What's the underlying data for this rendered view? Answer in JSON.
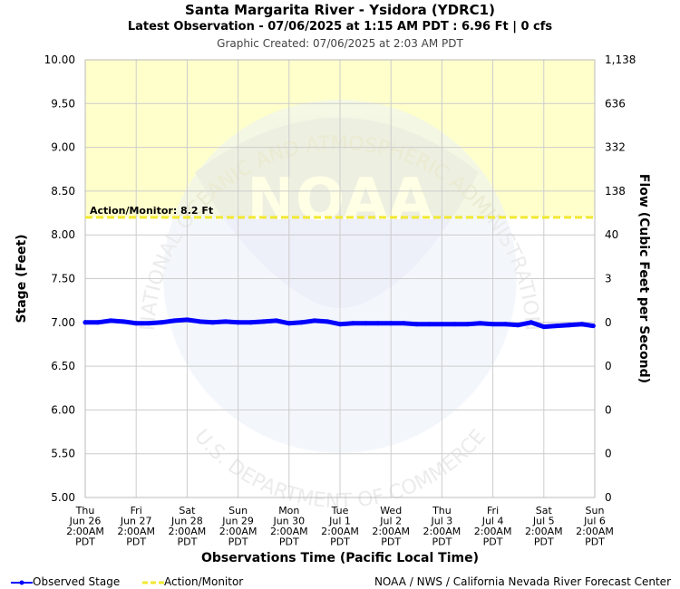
{
  "header": {
    "title": "Santa Margarita River - Ysidora (YDRC1)",
    "subtitle": "Latest Observation - 07/06/2025 at 1:15 AM PDT : 6.96 Ft | 0 cfs",
    "created": "Graphic Created: 07/06/2025 at 2:03 AM PDT"
  },
  "colors": {
    "observed": "#0000ff",
    "action": "#f2e830",
    "action_zone": "#ffffcc",
    "grid": "#cccccc"
  },
  "chart_data": {
    "type": "line",
    "xlabel": "Observations Time (Pacific Local Time)",
    "ylabel": "Stage (Feet)",
    "y2label": "Flow (Cubic Feet per Second)",
    "ylim": [
      5.0,
      10.0
    ],
    "yticks": [
      "5.00",
      "5.50",
      "6.00",
      "6.50",
      "7.00",
      "7.50",
      "8.00",
      "8.50",
      "9.00",
      "9.50",
      "10.00"
    ],
    "y2ticks": [
      "0",
      "0",
      "0",
      "0",
      "0",
      "3",
      "40",
      "138",
      "332",
      "636",
      "1,138"
    ],
    "xticks": [
      [
        "Thu",
        "Jun 26",
        "2:00AM",
        "PDT"
      ],
      [
        "Fri",
        "Jun 27",
        "2:00AM",
        "PDT"
      ],
      [
        "Sat",
        "Jun 28",
        "2:00AM",
        "PDT"
      ],
      [
        "Sun",
        "Jun 29",
        "2:00AM",
        "PDT"
      ],
      [
        "Mon",
        "Jun 30",
        "2:00AM",
        "PDT"
      ],
      [
        "Tue",
        "Jul 1",
        "2:00AM",
        "PDT"
      ],
      [
        "Wed",
        "Jul 2",
        "2:00AM",
        "PDT"
      ],
      [
        "Thu",
        "Jul 3",
        "2:00AM",
        "PDT"
      ],
      [
        "Fri",
        "Jul 4",
        "2:00AM",
        "PDT"
      ],
      [
        "Sat",
        "Jul 5",
        "2:00AM",
        "PDT"
      ],
      [
        "Sun",
        "Jul 6",
        "2:00AM",
        "PDT"
      ]
    ],
    "grid": true,
    "action_level": {
      "value": 8.2,
      "label": "Action/Monitor: 8.2 Ft"
    },
    "series": [
      {
        "name": "Observed Stage",
        "x": [
          0,
          0.25,
          0.5,
          0.75,
          1,
          1.25,
          1.5,
          1.75,
          2,
          2.25,
          2.5,
          2.75,
          3,
          3.25,
          3.5,
          3.75,
          4,
          4.25,
          4.5,
          4.75,
          5,
          5.25,
          5.5,
          5.75,
          6,
          6.25,
          6.5,
          6.75,
          7,
          7.25,
          7.5,
          7.75,
          8,
          8.25,
          8.5,
          8.75,
          9,
          9.25,
          9.5,
          9.75,
          9.97
        ],
        "y": [
          7.0,
          7.0,
          7.02,
          7.01,
          6.99,
          6.99,
          7.0,
          7.02,
          7.03,
          7.01,
          7.0,
          7.01,
          7.0,
          7.0,
          7.01,
          7.02,
          6.99,
          7.0,
          7.02,
          7.01,
          6.98,
          6.99,
          6.99,
          6.99,
          6.99,
          6.99,
          6.98,
          6.98,
          6.98,
          6.98,
          6.98,
          6.99,
          6.98,
          6.98,
          6.97,
          7.0,
          6.95,
          6.96,
          6.97,
          6.98,
          6.96
        ]
      }
    ]
  },
  "legend": {
    "observed_label": "Observed Stage",
    "action_label": "Action/Monitor"
  },
  "footer": {
    "credit": "NOAA / NWS / California Nevada River Forecast Center"
  },
  "watermark": {
    "ring_text_top": "NATIONAL OCEANIC AND ATMOSPHERIC ADMINISTRATION",
    "ring_text_bottom": "U.S. DEPARTMENT OF COMMERCE",
    "logo_text": "NOAA"
  }
}
